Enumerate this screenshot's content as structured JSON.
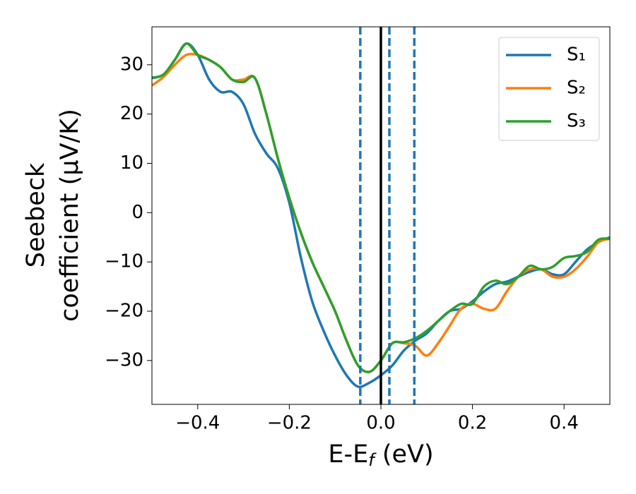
{
  "chart_data": {
    "type": "line",
    "xlabel": {
      "main": "E-E",
      "sub": "f",
      "unit": " (eV)"
    },
    "ylabel": [
      "Seebeck",
      "coefficient  (μV/K)"
    ],
    "x": [
      -0.5,
      -0.475,
      -0.45,
      -0.425,
      -0.4,
      -0.375,
      -0.35,
      -0.325,
      -0.3,
      -0.275,
      -0.25,
      -0.225,
      -0.2,
      -0.175,
      -0.15,
      -0.125,
      -0.1,
      -0.075,
      -0.05,
      -0.025,
      0,
      0.025,
      0.05,
      0.075,
      0.1,
      0.125,
      0.15,
      0.175,
      0.2,
      0.225,
      0.25,
      0.275,
      0.3,
      0.325,
      0.35,
      0.375,
      0.4,
      0.425,
      0.45,
      0.475,
      0.5
    ],
    "series": [
      {
        "name": "S₁",
        "color": "#1f77b4",
        "values": [
          27.3,
          28,
          31,
          34.3,
          32,
          27,
          24.5,
          24.5,
          22,
          16,
          12,
          9,
          2,
          -9,
          -18,
          -24,
          -29,
          -33,
          -35.3,
          -34.5,
          -33,
          -31,
          -28,
          -26,
          -24.5,
          -22,
          -20,
          -19.5,
          -18,
          -16,
          -14.5,
          -14,
          -13,
          -12,
          -11.5,
          -12.5,
          -12.5,
          -10,
          -7.5,
          -6,
          -5
        ]
      },
      {
        "name": "S₂",
        "color": "#ff7f0e",
        "values": [
          25.8,
          27.5,
          30,
          32,
          32,
          31,
          29.5,
          27,
          27,
          27.3,
          20,
          11,
          3,
          -4,
          -10,
          -15,
          -20,
          -26,
          -31,
          -32.3,
          -30,
          -26.5,
          -26.5,
          -27,
          -29,
          -26.5,
          -23,
          -19.5,
          -18.5,
          -19.5,
          -19.5,
          -16,
          -13,
          -11.5,
          -11.5,
          -13,
          -13,
          -11.5,
          -9,
          -6,
          -5.3
        ]
      },
      {
        "name": "S₃",
        "color": "#2ca02c",
        "values": [
          27.4,
          28,
          31,
          34.3,
          32,
          31,
          29.5,
          27,
          26.5,
          27.3,
          20,
          11,
          3,
          -4,
          -10,
          -15,
          -20,
          -26,
          -31,
          -32.3,
          -30,
          -26.5,
          -26.3,
          -25.5,
          -24,
          -22,
          -20,
          -18.5,
          -18.5,
          -15,
          -13.8,
          -14.5,
          -13,
          -10.8,
          -11.5,
          -11,
          -9.2,
          -8.8,
          -8,
          -5.5,
          -5.3
        ]
      }
    ],
    "vlines": [
      {
        "x": 0,
        "color": "#000000",
        "style": "solid"
      },
      {
        "x": -0.045,
        "color": "#1f77b4",
        "style": "dashed"
      },
      {
        "x": 0.0185,
        "color": "#1f77b4",
        "style": "dashed"
      },
      {
        "x": 0.073,
        "color": "#1f77b4",
        "style": "dashed"
      }
    ],
    "xlim": [
      -0.5,
      0.5
    ],
    "ylim": [
      -38.9,
      37.7
    ],
    "xticks": [
      {
        "value": -0.4,
        "label": "−0.4"
      },
      {
        "value": -0.2,
        "label": "−0.2"
      },
      {
        "value": 0,
        "label": "0.0"
      },
      0.2,
      0.4
    ],
    "yticks": [
      {
        "value": -30,
        "label": "−30"
      },
      {
        "value": -20,
        "label": "−20"
      },
      {
        "value": -10,
        "label": "−10"
      },
      0,
      10,
      20,
      30
    ],
    "legend": "upper right",
    "grid": false
  }
}
